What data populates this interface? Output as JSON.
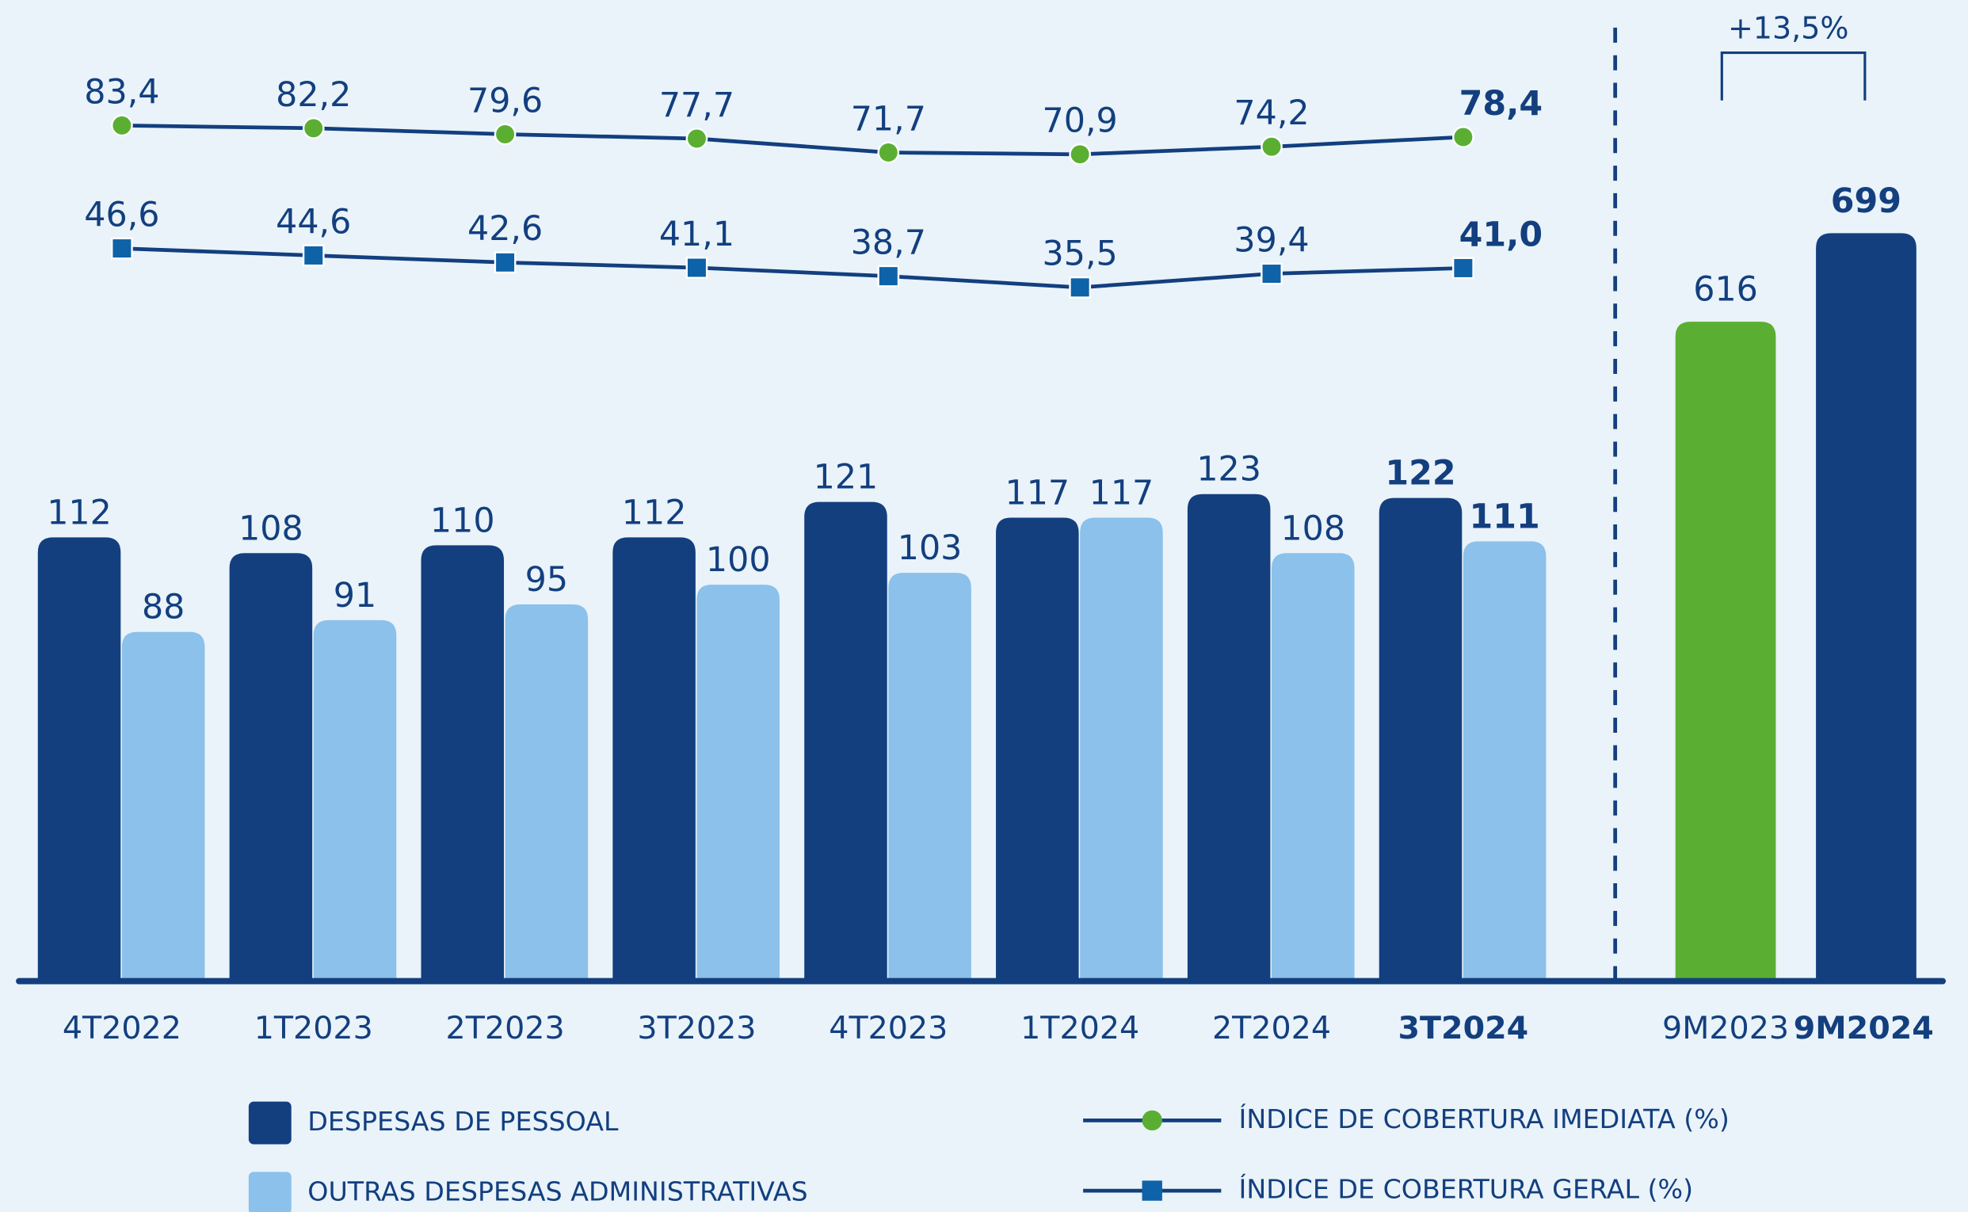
{
  "chart_data": [
    {
      "type": "bar",
      "categories": [
        "4T2022",
        "1T2023",
        "2T2023",
        "3T2023",
        "4T2023",
        "1T2024",
        "2T2024",
        "3T2024"
      ],
      "series": [
        {
          "name": "DESPESAS DE PESSOAL",
          "color": "#133f7f",
          "values": [
            112,
            108,
            110,
            112,
            121,
            117,
            123,
            122
          ]
        },
        {
          "name": "OUTRAS DESPESAS ADMINISTRATIVAS",
          "color": "#8bc1ea",
          "values": [
            88,
            91,
            95,
            100,
            103,
            117,
            108,
            111
          ]
        },
        {
          "name": "ÍNDICE DE COBERTURA IMEDIATA (%)",
          "type": "line",
          "color": "#133f7f",
          "marker": "circle",
          "marker_color": "#5aaf33",
          "values": [
            83.4,
            82.2,
            79.6,
            77.7,
            71.7,
            70.9,
            74.2,
            78.4
          ],
          "value_labels": [
            "83,4",
            "82,2",
            "79,6",
            "77,7",
            "71,7",
            "70,9",
            "74,2",
            "78,4"
          ]
        },
        {
          "name": "ÍNDICE DE COBERTURA GERAL (%)",
          "type": "line",
          "color": "#133f7f",
          "marker": "square",
          "marker_color": "#0e62a8",
          "values": [
            46.6,
            44.6,
            42.6,
            41.1,
            38.7,
            35.5,
            39.4,
            41.0
          ],
          "value_labels": [
            "46,6",
            "44,6",
            "42,6",
            "41,1",
            "38,7",
            "35,5",
            "39,4",
            "41,0"
          ]
        }
      ]
    },
    {
      "type": "bar",
      "categories": [
        "9M2023",
        "9M2024"
      ],
      "values": [
        616,
        699
      ],
      "colors": [
        "#5aaf33",
        "#133f7f"
      ],
      "annotation": "+13,5%"
    }
  ]
}
